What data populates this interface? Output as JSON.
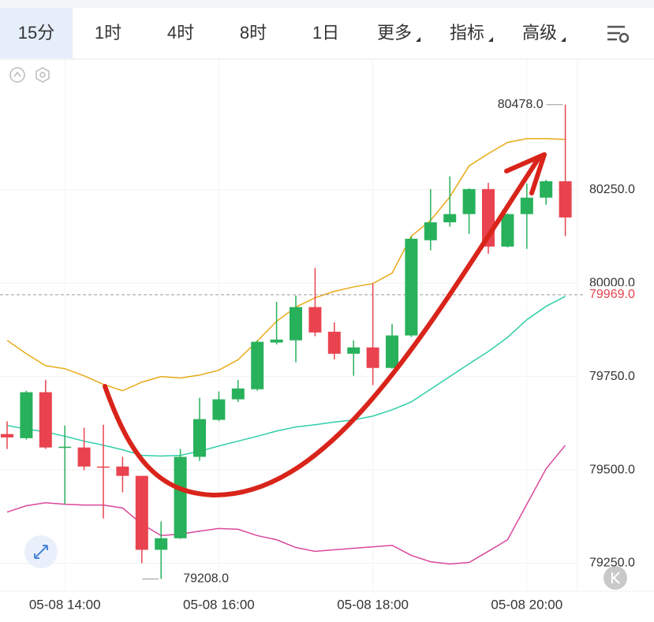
{
  "toolbar": {
    "tabs": [
      "15分",
      "1时",
      "4时",
      "8时",
      "1日",
      "更多",
      "指标",
      "高级"
    ]
  },
  "chart_data": {
    "type": "candlestick",
    "categories": [
      null,
      null,
      null,
      "05-08 14:00",
      null,
      null,
      null,
      null,
      null,
      null,
      null,
      "05-08 16:00",
      null,
      null,
      null,
      null,
      null,
      null,
      null,
      "05-08 18:00",
      null,
      null,
      null,
      null,
      null,
      null,
      null,
      "05-08 20:00",
      null,
      null
    ],
    "open": [
      79596,
      79585,
      79708,
      79560,
      79560,
      79509,
      79509,
      79484,
      79286,
      79317,
      79535,
      79634,
      79689,
      79716,
      79841,
      79847,
      79936,
      79870,
      79811,
      79828,
      79773,
      79860,
      80115,
      80163,
      80185,
      80252,
      80098,
      80185,
      80229,
      80273
    ],
    "high": [
      79630,
      79712,
      79741,
      79619,
      79613,
      79621,
      79535,
      79484,
      79362,
      79556,
      79693,
      79710,
      79741,
      79847,
      79950,
      79967,
      80041,
      79895,
      79847,
      79999,
      79891,
      80125,
      80252,
      80286,
      80254,
      80269,
      80187,
      80267,
      80277,
      80478
    ],
    "low": [
      79556,
      79581,
      79556,
      79408,
      79499,
      79370,
      79440,
      79250,
      79208,
      79315,
      79524,
      79630,
      79682,
      79712,
      79836,
      79788,
      79858,
      79796,
      79752,
      79727,
      79771,
      79856,
      80088,
      80151,
      80132,
      80079,
      80096,
      80092,
      80210,
      80126
    ],
    "close": [
      79587,
      79708,
      79560,
      79562,
      79509,
      79508,
      79484,
      79286,
      79317,
      79535,
      79636,
      79689,
      79718,
      79843,
      79849,
      79936,
      79868,
      79811,
      79828,
      79773,
      79860,
      80119,
      80163,
      80185,
      80252,
      80098,
      80185,
      80229,
      80273,
      80176
    ],
    "up_color": "#27b15b",
    "down_color": "#e8434f",
    "lines": [
      {
        "color": "#e8a917",
        "values": [
          79847,
          79811,
          79779,
          79771,
          79752,
          79729,
          79712,
          79735,
          79750,
          79746,
          79754,
          79767,
          79795,
          79845,
          79898,
          79936,
          79961,
          79978,
          79990,
          79999,
          80027,
          80126,
          80168,
          80231,
          80314,
          80347,
          80377,
          80387,
          80387,
          80385
        ]
      },
      {
        "color": "#2fcfa8",
        "values": [
          79619,
          79609,
          79602,
          79590,
          79577,
          79566,
          79554,
          79539,
          79537,
          79539,
          79550,
          79564,
          79577,
          79590,
          79604,
          79615,
          79621,
          79628,
          79634,
          79644,
          79661,
          79682,
          79716,
          79750,
          79784,
          79817,
          79855,
          79902,
          79938,
          79965
        ]
      },
      {
        "color": "#d9489b",
        "values": [
          79387,
          79404,
          79412,
          79408,
          79406,
          79406,
          79398,
          79355,
          79324,
          79328,
          79336,
          79343,
          79341,
          79324,
          79313,
          79292,
          79282,
          79286,
          79290,
          79294,
          79298,
          79271,
          79254,
          79248,
          79252,
          79282,
          79313,
          79408,
          79503,
          79566
        ]
      }
    ],
    "ylim": [
      79175,
      80600
    ],
    "yticks": [
      {
        "value": 79250,
        "label": "79250.0"
      },
      {
        "value": 79500,
        "label": "79500.0"
      },
      {
        "value": 79750,
        "label": "79750.0"
      },
      {
        "value": 80000,
        "label": "80000.0"
      },
      {
        "value": 80250,
        "label": "80250.0"
      }
    ],
    "grid": true,
    "last_price": {
      "value": 79969,
      "label": "79969.0"
    },
    "annotations": [
      {
        "index": 29,
        "value": 80478,
        "label": "80478.0"
      },
      {
        "index": 8,
        "value": 79208,
        "label": "79208.0"
      }
    ]
  }
}
